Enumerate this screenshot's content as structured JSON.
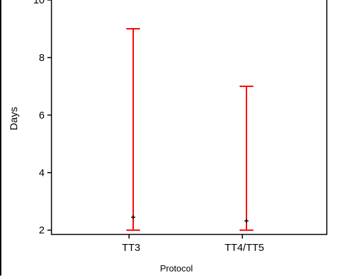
{
  "chart_data": {
    "type": "range",
    "title": "",
    "xlabel": "Protocol",
    "ylabel": "Days",
    "categories": [
      "TT3",
      "TT4/TT5"
    ],
    "series": [
      {
        "low": [
          2,
          2
        ],
        "high": [
          9,
          7
        ],
        "mean": [
          2.45,
          2.32
        ],
        "color": "#ff0000"
      }
    ],
    "ylim": [
      1.85,
      10
    ],
    "yticks": [
      "2",
      "4",
      "6",
      "8",
      "10"
    ],
    "grid": false,
    "legend": "none",
    "colors": {
      "range": "#ff0000",
      "mean": "#000000",
      "axis": "#000000"
    }
  }
}
